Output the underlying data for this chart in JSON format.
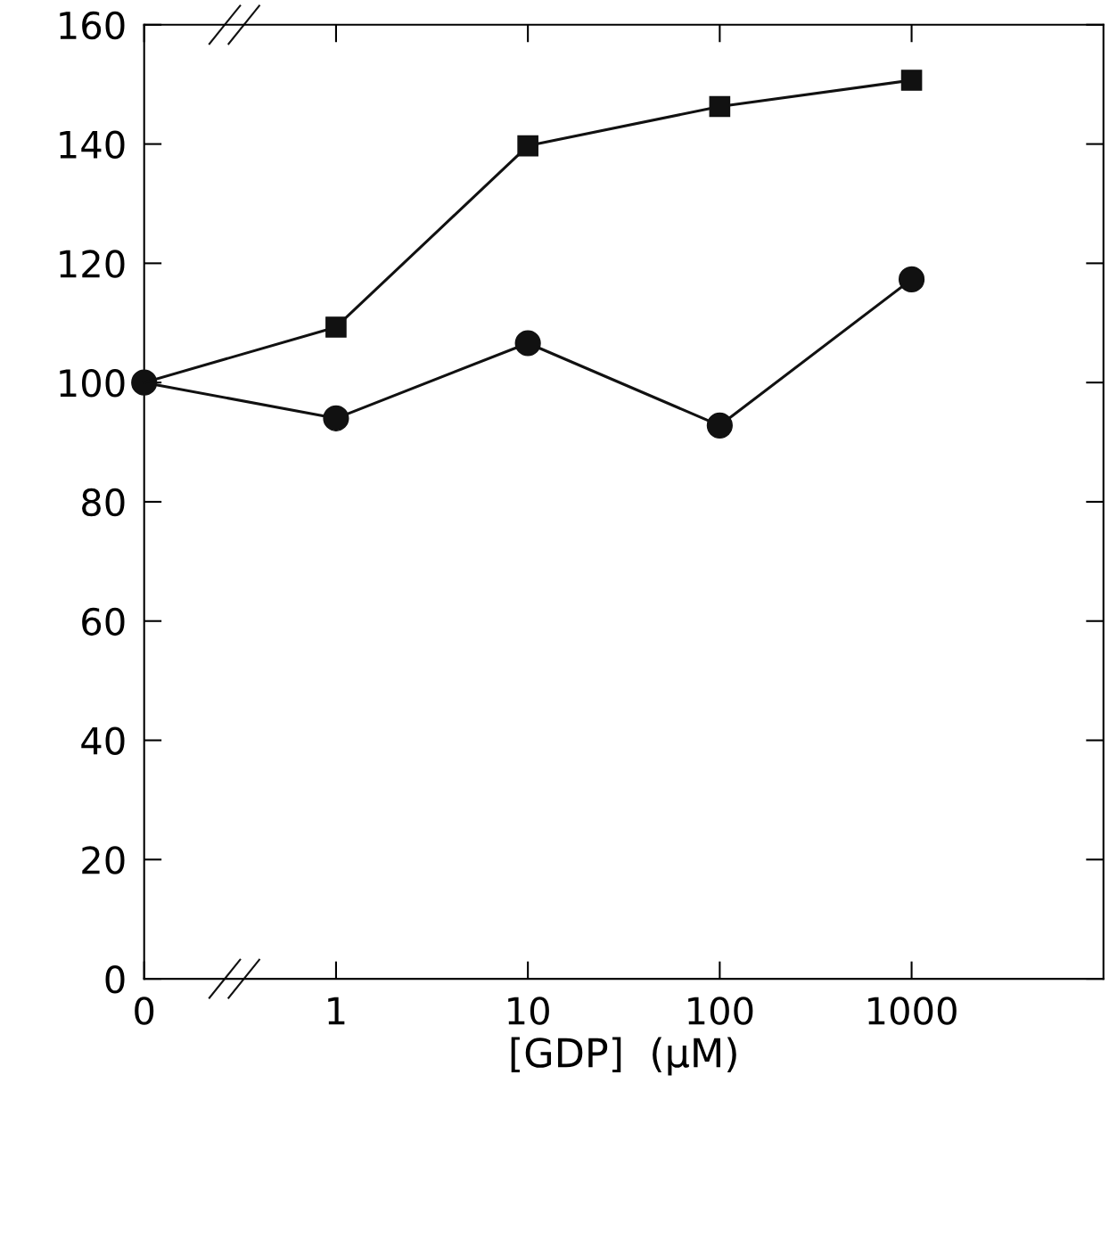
{
  "chart_data": {
    "type": "line",
    "xlabel": "[GDP]  (μM)",
    "categories": [
      "0",
      "1",
      "10",
      "100",
      "1000"
    ],
    "series": [
      {
        "color": "#111111",
        "marker": "circle",
        "values": [
          100,
          94,
          106.6,
          92.8,
          117.3
        ]
      },
      {
        "color": "#111111",
        "marker": "square",
        "values": [
          100,
          109.3,
          139.7,
          146.3,
          150.7
        ]
      }
    ],
    "ylim": [
      0,
      160
    ],
    "yticks": [
      0,
      20,
      40,
      60,
      80,
      100,
      120,
      140,
      160
    ],
    "grid": false,
    "legend": false,
    "line_style": "solid"
  }
}
